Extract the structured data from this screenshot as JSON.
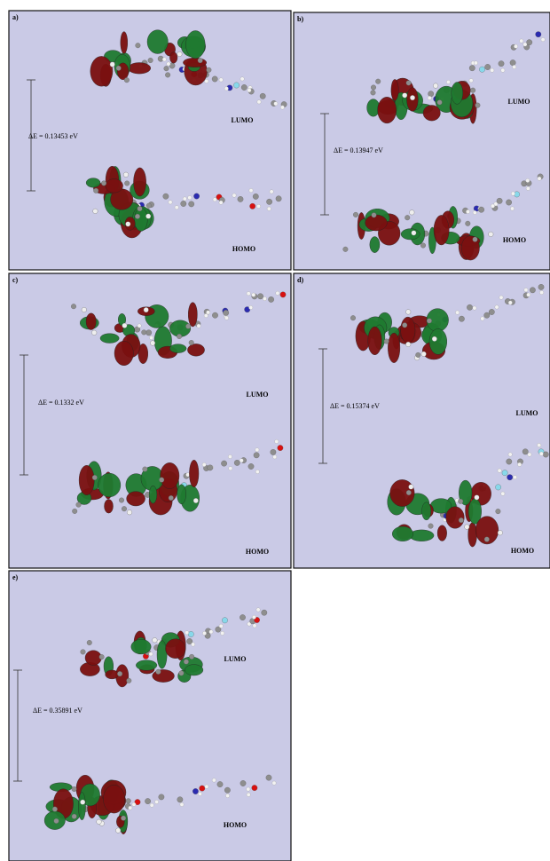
{
  "panels": [
    {
      "label": "a)",
      "delta_e": "ΔE =  0.13453 eV",
      "lumo": "LUMO",
      "homo": "HOMO"
    },
    {
      "label": "b)",
      "delta_e": "ΔE = 0.13947 eV",
      "lumo": "LUMO",
      "homo": "HOMO"
    },
    {
      "label": "c)",
      "delta_e": "ΔE =  0.1332 eV",
      "lumo": "LUMO",
      "homo": "HOMO"
    },
    {
      "label": "d)",
      "delta_e": "ΔE = 0.15374 eV",
      "lumo": "LUMO",
      "homo": "HOMO"
    },
    {
      "label": "e)",
      "delta_e": "ΔE =  0.35891 eV",
      "lumo": "LUMO",
      "homo": "HOMO"
    }
  ]
}
